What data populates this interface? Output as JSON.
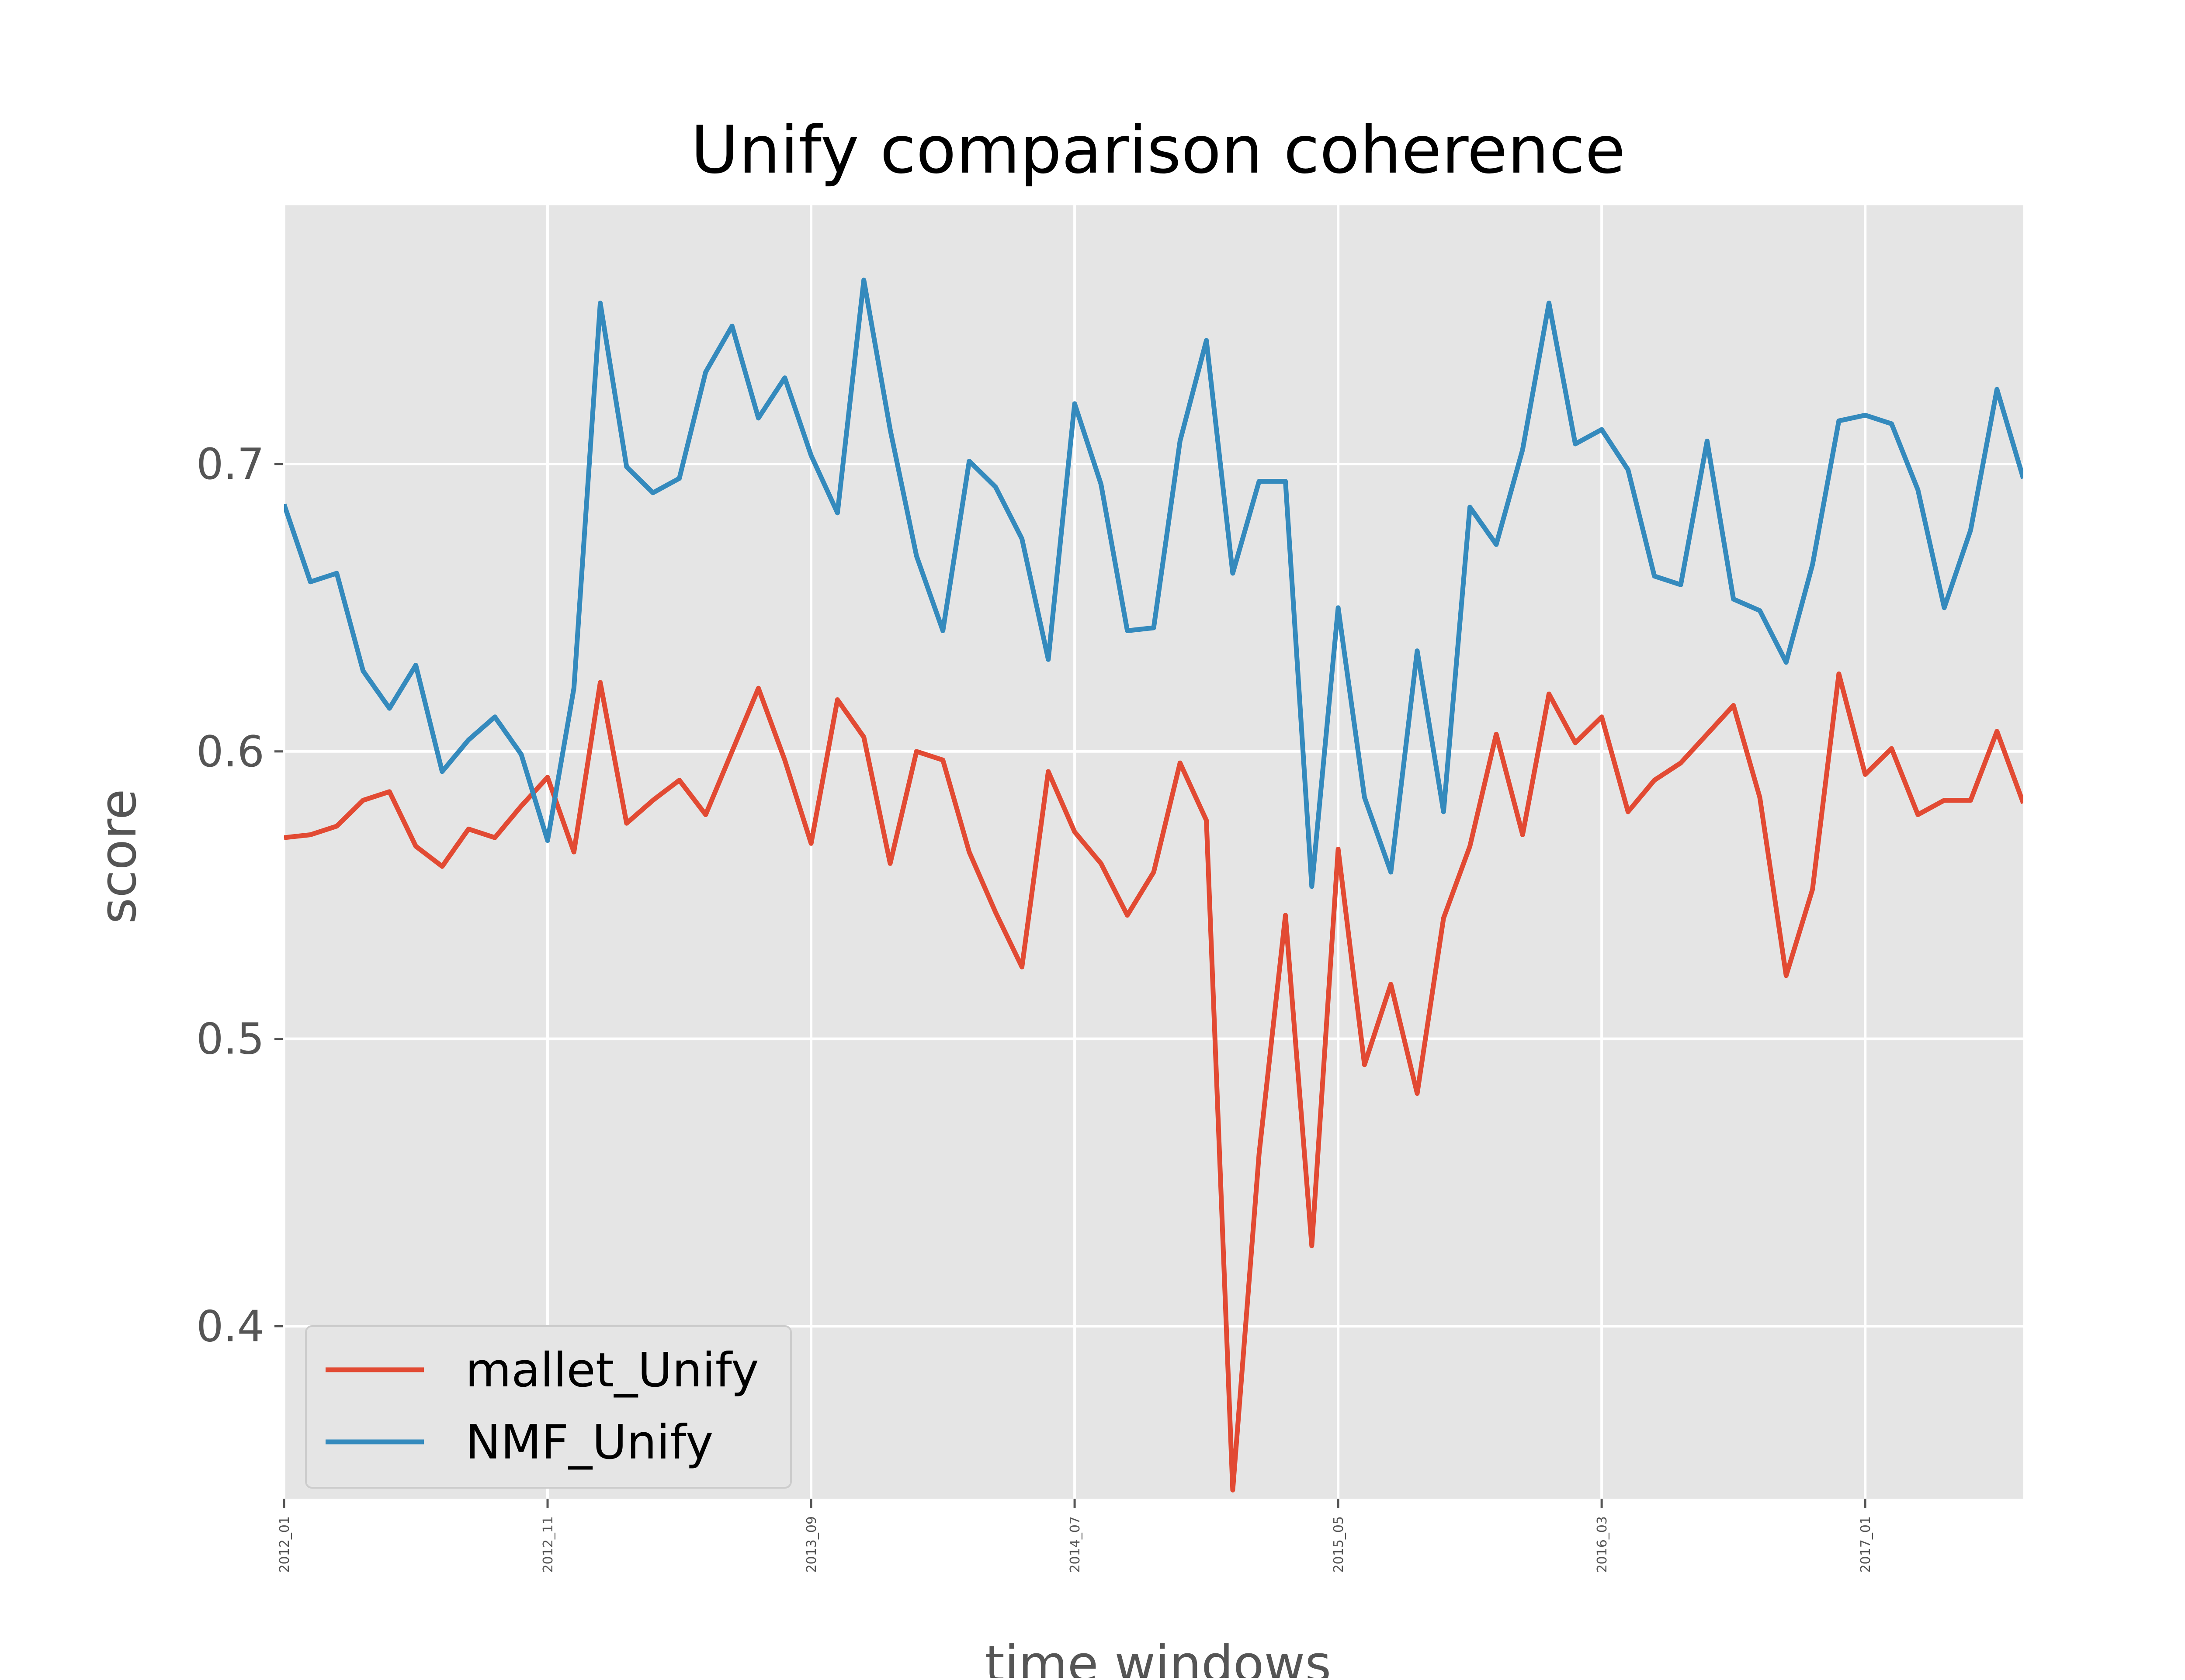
{
  "chart_data": {
    "type": "line",
    "title": "Unify comparison coherence",
    "xlabel": "time windows",
    "ylabel": "score",
    "ylim": [
      0.34,
      0.79
    ],
    "yticks": [
      "0.4",
      "0.5",
      "0.6",
      "0.7"
    ],
    "ytick_values": [
      0.4,
      0.5,
      0.6,
      0.7
    ],
    "x_start": "2012_01",
    "x_count": 67,
    "xticks": [
      {
        "label": "2012_01",
        "index": 0
      },
      {
        "label": "2012_11",
        "index": 10
      },
      {
        "label": "2013_09",
        "index": 20
      },
      {
        "label": "2014_07",
        "index": 30
      },
      {
        "label": "2015_05",
        "index": 40
      },
      {
        "label": "2016_03",
        "index": 50
      },
      {
        "label": "2017_01",
        "index": 60
      }
    ],
    "grid": true,
    "legend_position": "lower-left",
    "background": "#e5e5e5",
    "series": [
      {
        "name": "mallet_Unify",
        "color": "#e24a33",
        "values": [
          0.57,
          0.571,
          0.574,
          0.583,
          0.586,
          0.567,
          0.56,
          0.573,
          0.57,
          0.581,
          0.591,
          0.565,
          0.624,
          0.575,
          0.583,
          0.59,
          0.578,
          0.6,
          0.622,
          0.597,
          0.568,
          0.618,
          0.605,
          0.561,
          0.6,
          0.597,
          0.565,
          0.544,
          0.525,
          0.593,
          0.572,
          0.561,
          0.543,
          0.558,
          0.596,
          0.576,
          0.343,
          0.46,
          0.543,
          0.428,
          0.566,
          0.491,
          0.519,
          0.481,
          0.542,
          0.567,
          0.606,
          0.571,
          0.62,
          0.603,
          0.612,
          0.579,
          0.59,
          0.596,
          0.606,
          0.616,
          0.584,
          0.522,
          0.552,
          0.627,
          0.592,
          0.601,
          0.578,
          0.583,
          0.583,
          0.607,
          0.582
        ]
      },
      {
        "name": "NMF_Unify",
        "color": "#348abd",
        "values": [
          0.686,
          0.659,
          0.662,
          0.628,
          0.615,
          0.63,
          0.593,
          0.604,
          0.612,
          0.599,
          0.569,
          0.622,
          0.756,
          0.699,
          0.69,
          0.695,
          0.732,
          0.748,
          0.716,
          0.73,
          0.703,
          0.683,
          0.764,
          0.712,
          0.668,
          0.642,
          0.701,
          0.692,
          0.674,
          0.632,
          0.721,
          0.693,
          0.642,
          0.643,
          0.708,
          0.743,
          0.662,
          0.694,
          0.694,
          0.553,
          0.65,
          0.584,
          0.558,
          0.635,
          0.579,
          0.685,
          0.672,
          0.705,
          0.756,
          0.707,
          0.712,
          0.698,
          0.661,
          0.658,
          0.708,
          0.653,
          0.649,
          0.631,
          0.665,
          0.715,
          0.717,
          0.714,
          0.691,
          0.65,
          0.677,
          0.726,
          0.695
        ]
      }
    ]
  }
}
